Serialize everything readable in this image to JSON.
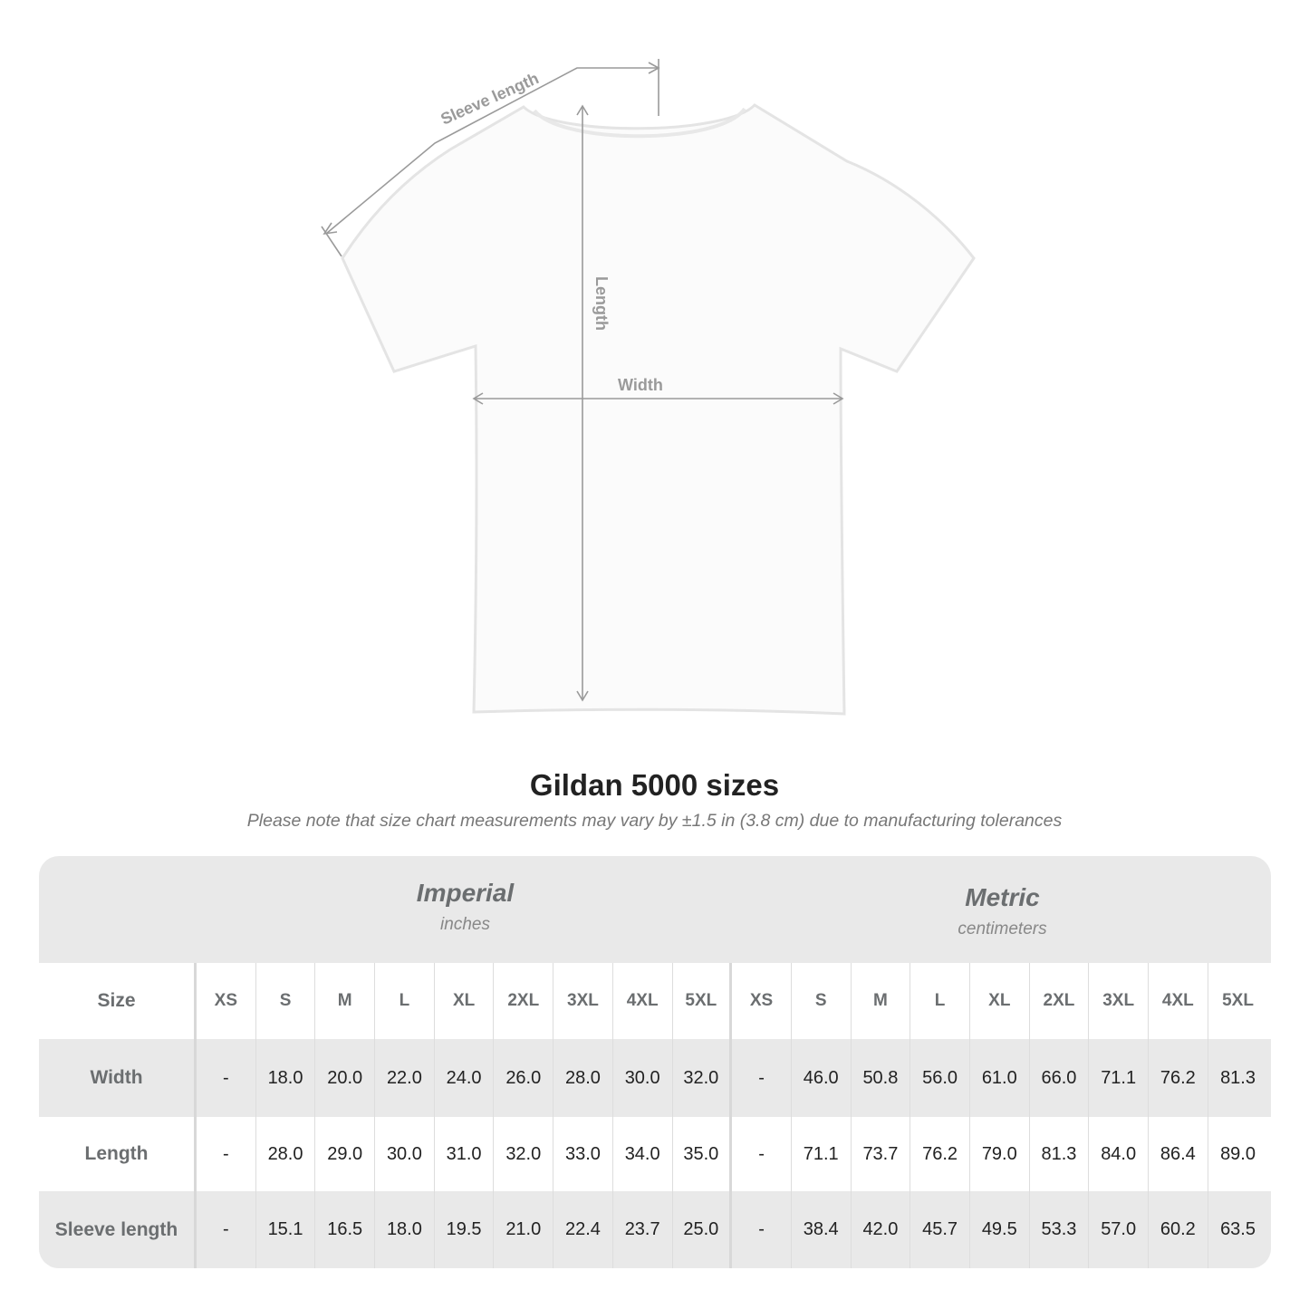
{
  "diagram": {
    "labels": {
      "sleeve": "Sleeve length",
      "length": "Length",
      "width": "Width"
    },
    "line_color": "#9a9a9a"
  },
  "title": "Gildan 5000 sizes",
  "note": "Please note that size chart measurements may vary by ±1.5 in (3.8 cm) due to manufacturing tolerances",
  "table": {
    "imperial": {
      "name": "Imperial",
      "unit": "inches"
    },
    "metric": {
      "name": "Metric",
      "unit": "centimeters"
    },
    "size_label": "Size",
    "sizes": [
      "XS",
      "S",
      "M",
      "L",
      "XL",
      "2XL",
      "3XL",
      "4XL",
      "5XL"
    ],
    "rows": [
      {
        "label": "Width",
        "imperial": [
          "-",
          "18.0",
          "20.0",
          "22.0",
          "24.0",
          "26.0",
          "28.0",
          "30.0",
          "32.0"
        ],
        "metric": [
          "-",
          "46.0",
          "50.8",
          "56.0",
          "61.0",
          "66.0",
          "71.1",
          "76.2",
          "81.3"
        ]
      },
      {
        "label": "Length",
        "imperial": [
          "-",
          "28.0",
          "29.0",
          "30.0",
          "31.0",
          "32.0",
          "33.0",
          "34.0",
          "35.0"
        ],
        "metric": [
          "-",
          "71.1",
          "73.7",
          "76.2",
          "79.0",
          "81.3",
          "84.0",
          "86.4",
          "89.0"
        ]
      },
      {
        "label": "Sleeve length",
        "imperial": [
          "-",
          "15.1",
          "16.5",
          "18.0",
          "19.5",
          "21.0",
          "22.4",
          "23.7",
          "25.0"
        ],
        "metric": [
          "-",
          "38.4",
          "42.0",
          "45.7",
          "49.5",
          "53.3",
          "57.0",
          "60.2",
          "63.5"
        ]
      }
    ]
  }
}
